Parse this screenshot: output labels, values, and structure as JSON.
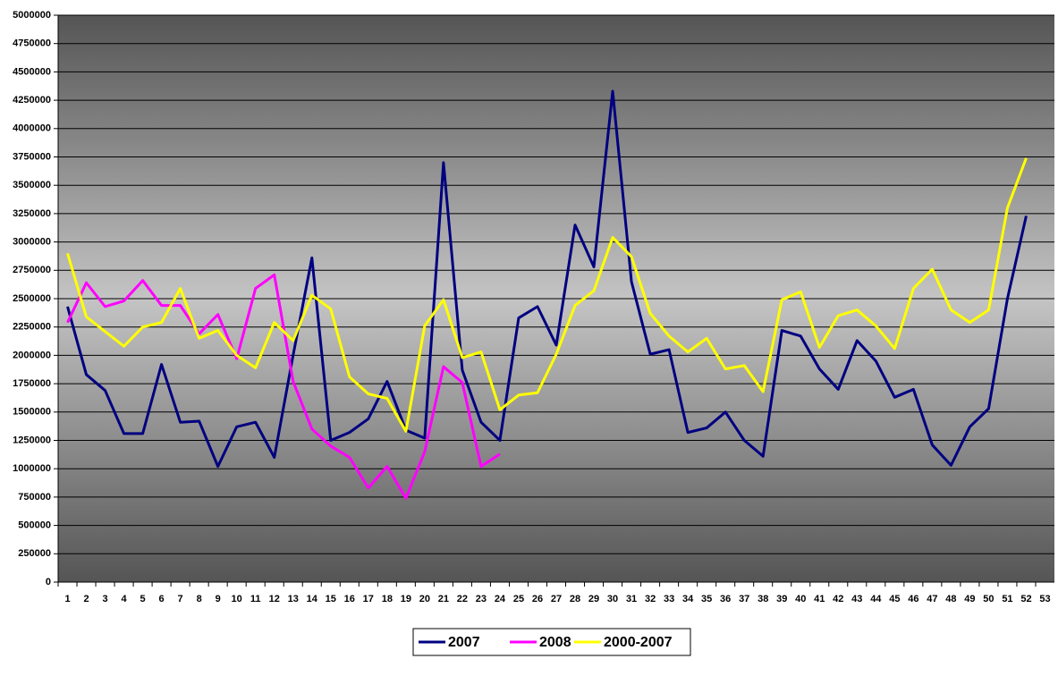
{
  "chart_data": {
    "type": "line",
    "categories": [
      "1",
      "2",
      "3",
      "4",
      "5",
      "6",
      "7",
      "8",
      "9",
      "10",
      "11",
      "12",
      "13",
      "14",
      "15",
      "16",
      "17",
      "18",
      "19",
      "20",
      "21",
      "22",
      "23",
      "24",
      "25",
      "26",
      "27",
      "28",
      "29",
      "30",
      "31",
      "32",
      "33",
      "34",
      "35",
      "36",
      "37",
      "38",
      "39",
      "40",
      "41",
      "42",
      "43",
      "44",
      "45",
      "46",
      "47",
      "48",
      "49",
      "50",
      "51",
      "52",
      "53"
    ],
    "series": [
      {
        "name": "2007",
        "color": "#000080",
        "values": [
          2430000,
          1830000,
          1690000,
          1310000,
          1310000,
          1920000,
          1410000,
          1420000,
          1020000,
          1370000,
          1410000,
          1100000,
          2000000,
          2860000,
          1250000,
          1320000,
          1440000,
          1770000,
          1340000,
          1270000,
          3700000,
          1870000,
          1410000,
          1250000,
          2330000,
          2430000,
          2090000,
          3150000,
          2780000,
          4330000,
          2650000,
          2010000,
          2050000,
          1320000,
          1360000,
          1500000,
          1250000,
          1110000,
          2220000,
          2170000,
          1880000,
          1700000,
          2130000,
          1950000,
          1630000,
          1700000,
          1210000,
          1030000,
          1370000,
          1530000,
          2500000,
          3230000,
          null
        ]
      },
      {
        "name": "2008",
        "color": "#ff00ff",
        "values": [
          2290000,
          2640000,
          2430000,
          2480000,
          2660000,
          2440000,
          2440000,
          2190000,
          2360000,
          1970000,
          2590000,
          2710000,
          1770000,
          1350000,
          1200000,
          1100000,
          830000,
          1020000,
          740000,
          1150000,
          1900000,
          1760000,
          1020000,
          1130000,
          null,
          null,
          null,
          null,
          null,
          null,
          null,
          null,
          null,
          null,
          null,
          null,
          null,
          null,
          null,
          null,
          null,
          null,
          null,
          null,
          null,
          null,
          null,
          null,
          null,
          null,
          null,
          null,
          null
        ]
      },
      {
        "name": "2000-2007",
        "color": "#ffff00",
        "values": [
          2900000,
          2340000,
          2210000,
          2080000,
          2250000,
          2290000,
          2590000,
          2150000,
          2220000,
          2000000,
          1890000,
          2290000,
          2130000,
          2530000,
          2410000,
          1810000,
          1660000,
          1620000,
          1330000,
          2260000,
          2490000,
          1980000,
          2030000,
          1520000,
          1650000,
          1670000,
          2010000,
          2440000,
          2570000,
          3040000,
          2870000,
          2370000,
          2170000,
          2030000,
          2150000,
          1880000,
          1910000,
          1680000,
          2490000,
          2560000,
          2070000,
          2350000,
          2400000,
          2260000,
          2060000,
          2590000,
          2760000,
          2400000,
          2290000,
          2400000,
          3300000,
          3740000,
          null
        ]
      }
    ],
    "ylim": [
      0,
      5000000
    ],
    "yticks": [
      0,
      250000,
      500000,
      750000,
      1000000,
      1250000,
      1500000,
      1750000,
      2000000,
      2250000,
      2500000,
      2750000,
      3000000,
      3250000,
      3500000,
      3750000,
      4000000,
      4250000,
      4500000,
      4750000,
      5000000
    ],
    "grid": true,
    "legend": "bottom"
  }
}
